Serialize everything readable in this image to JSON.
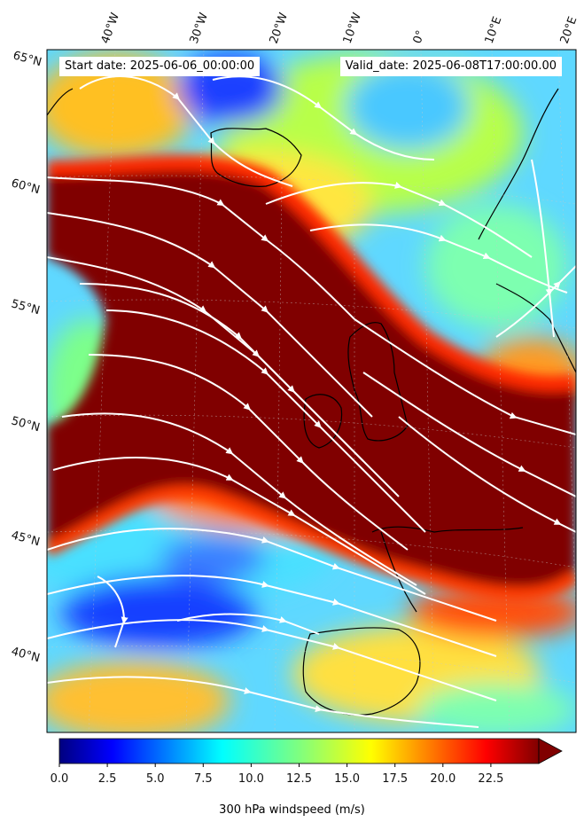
{
  "header": {
    "start_label": "Start date: 2025-06-06_00:00:00",
    "valid_label": "Valid_date: 2025-06-08T17:00:00.00"
  },
  "lon_labels": [
    "40°W",
    "30°W",
    "20°W",
    "10°W",
    "0°",
    "10°E",
    "20°E"
  ],
  "lat_labels": [
    "65°N",
    "60°N",
    "55°N",
    "50°N",
    "45°N",
    "40°N"
  ],
  "colorbar": {
    "title": "300 hPa windspeed (m/s)",
    "ticks": [
      "0.0",
      "2.5",
      "5.0",
      "7.5",
      "10.0",
      "12.5",
      "15.0",
      "17.5",
      "20.0",
      "22.5"
    ],
    "min": 0,
    "max": 25,
    "extend": "max",
    "colormap": "jet"
  },
  "colors": {
    "jet_core": "#800000",
    "streamlines": "#ffffff",
    "coastline": "#000000"
  }
}
